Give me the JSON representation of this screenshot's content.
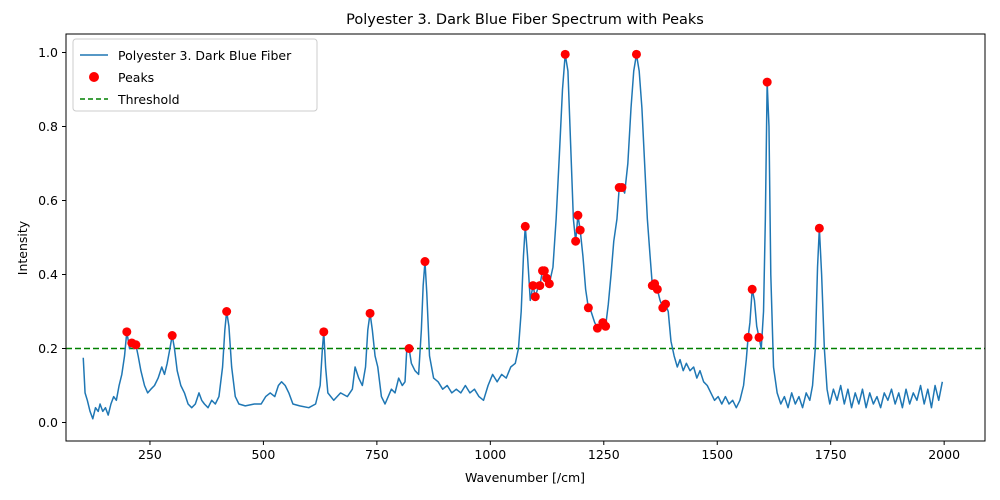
{
  "chart_data": {
    "type": "line",
    "title": "Polyester 3. Dark Blue Fiber Spectrum with Peaks",
    "xlabel": "Wavenumber [/cm]",
    "ylabel": "Intensity",
    "xlim": [
      65,
      2090
    ],
    "ylim": [
      -0.05,
      1.05
    ],
    "xticks": [
      250,
      500,
      750,
      1000,
      1250,
      1500,
      1750,
      2000
    ],
    "yticks": [
      0.0,
      0.2,
      0.4,
      0.6,
      0.8,
      1.0
    ],
    "xtick_labels": [
      "250",
      "500",
      "750",
      "1000",
      "1250",
      "1500",
      "1750",
      "2000"
    ],
    "ytick_labels": [
      "0.0",
      "0.2",
      "0.4",
      "0.6",
      "0.8",
      "1.0"
    ],
    "legend_position": "upper-left",
    "threshold": 0.2,
    "series": [
      {
        "name": "Polyester 3. Dark Blue Fiber",
        "kind": "line",
        "color": "#1f77b4",
        "points": [
          [
            103,
            0.175
          ],
          [
            107,
            0.08
          ],
          [
            112,
            0.06
          ],
          [
            118,
            0.03
          ],
          [
            124,
            0.01
          ],
          [
            130,
            0.04
          ],
          [
            136,
            0.03
          ],
          [
            140,
            0.05
          ],
          [
            146,
            0.03
          ],
          [
            152,
            0.04
          ],
          [
            158,
            0.02
          ],
          [
            164,
            0.05
          ],
          [
            170,
            0.07
          ],
          [
            176,
            0.06
          ],
          [
            182,
            0.1
          ],
          [
            188,
            0.13
          ],
          [
            194,
            0.18
          ],
          [
            199,
            0.245
          ],
          [
            205,
            0.2
          ],
          [
            210,
            0.215
          ],
          [
            214,
            0.2
          ],
          [
            219,
            0.21
          ],
          [
            224,
            0.18
          ],
          [
            230,
            0.14
          ],
          [
            238,
            0.1
          ],
          [
            245,
            0.08
          ],
          [
            252,
            0.09
          ],
          [
            260,
            0.1
          ],
          [
            268,
            0.12
          ],
          [
            276,
            0.15
          ],
          [
            282,
            0.13
          ],
          [
            288,
            0.16
          ],
          [
            294,
            0.2
          ],
          [
            299,
            0.235
          ],
          [
            304,
            0.2
          ],
          [
            310,
            0.14
          ],
          [
            318,
            0.1
          ],
          [
            326,
            0.08
          ],
          [
            334,
            0.05
          ],
          [
            342,
            0.04
          ],
          [
            350,
            0.05
          ],
          [
            358,
            0.08
          ],
          [
            364,
            0.06
          ],
          [
            370,
            0.05
          ],
          [
            378,
            0.04
          ],
          [
            386,
            0.06
          ],
          [
            394,
            0.05
          ],
          [
            402,
            0.07
          ],
          [
            410,
            0.15
          ],
          [
            415,
            0.25
          ],
          [
            419,
            0.3
          ],
          [
            424,
            0.26
          ],
          [
            430,
            0.15
          ],
          [
            438,
            0.07
          ],
          [
            446,
            0.05
          ],
          [
            460,
            0.045
          ],
          [
            480,
            0.05
          ],
          [
            495,
            0.05
          ],
          [
            505,
            0.07
          ],
          [
            515,
            0.08
          ],
          [
            525,
            0.07
          ],
          [
            533,
            0.1
          ],
          [
            540,
            0.11
          ],
          [
            548,
            0.1
          ],
          [
            556,
            0.08
          ],
          [
            565,
            0.05
          ],
          [
            580,
            0.045
          ],
          [
            600,
            0.04
          ],
          [
            615,
            0.05
          ],
          [
            625,
            0.1
          ],
          [
            630,
            0.2
          ],
          [
            633,
            0.245
          ],
          [
            637,
            0.15
          ],
          [
            642,
            0.08
          ],
          [
            655,
            0.06
          ],
          [
            670,
            0.08
          ],
          [
            685,
            0.07
          ],
          [
            696,
            0.09
          ],
          [
            702,
            0.15
          ],
          [
            710,
            0.12
          ],
          [
            718,
            0.1
          ],
          [
            725,
            0.15
          ],
          [
            730,
            0.25
          ],
          [
            735,
            0.295
          ],
          [
            740,
            0.25
          ],
          [
            746,
            0.18
          ],
          [
            752,
            0.15
          ],
          [
            760,
            0.07
          ],
          [
            768,
            0.05
          ],
          [
            775,
            0.07
          ],
          [
            782,
            0.09
          ],
          [
            790,
            0.08
          ],
          [
            798,
            0.12
          ],
          [
            806,
            0.1
          ],
          [
            812,
            0.11
          ],
          [
            816,
            0.2
          ],
          [
            821,
            0.2
          ],
          [
            826,
            0.16
          ],
          [
            834,
            0.14
          ],
          [
            842,
            0.13
          ],
          [
            848,
            0.25
          ],
          [
            852,
            0.37
          ],
          [
            856,
            0.435
          ],
          [
            860,
            0.35
          ],
          [
            866,
            0.18
          ],
          [
            875,
            0.12
          ],
          [
            885,
            0.11
          ],
          [
            895,
            0.09
          ],
          [
            905,
            0.1
          ],
          [
            915,
            0.08
          ],
          [
            925,
            0.09
          ],
          [
            935,
            0.08
          ],
          [
            945,
            0.1
          ],
          [
            955,
            0.08
          ],
          [
            965,
            0.09
          ],
          [
            975,
            0.07
          ],
          [
            985,
            0.06
          ],
          [
            995,
            0.1
          ],
          [
            1005,
            0.13
          ],
          [
            1015,
            0.11
          ],
          [
            1025,
            0.13
          ],
          [
            1035,
            0.12
          ],
          [
            1045,
            0.15
          ],
          [
            1055,
            0.16
          ],
          [
            1062,
            0.2
          ],
          [
            1068,
            0.3
          ],
          [
            1073,
            0.45
          ],
          [
            1077,
            0.53
          ],
          [
            1082,
            0.45
          ],
          [
            1088,
            0.33
          ],
          [
            1094,
            0.37
          ],
          [
            1099,
            0.34
          ],
          [
            1104,
            0.36
          ],
          [
            1109,
            0.37
          ],
          [
            1115,
            0.41
          ],
          [
            1119,
            0.41
          ],
          [
            1124,
            0.39
          ],
          [
            1130,
            0.375
          ],
          [
            1138,
            0.42
          ],
          [
            1145,
            0.55
          ],
          [
            1152,
            0.72
          ],
          [
            1159,
            0.9
          ],
          [
            1165,
            0.995
          ],
          [
            1171,
            0.95
          ],
          [
            1177,
            0.75
          ],
          [
            1183,
            0.55
          ],
          [
            1188,
            0.49
          ],
          [
            1193,
            0.56
          ],
          [
            1198,
            0.52
          ],
          [
            1204,
            0.45
          ],
          [
            1210,
            0.36
          ],
          [
            1216,
            0.31
          ],
          [
            1222,
            0.3
          ],
          [
            1230,
            0.27
          ],
          [
            1236,
            0.255
          ],
          [
            1242,
            0.26
          ],
          [
            1248,
            0.27
          ],
          [
            1254,
            0.26
          ],
          [
            1260,
            0.32
          ],
          [
            1266,
            0.4
          ],
          [
            1272,
            0.49
          ],
          [
            1279,
            0.55
          ],
          [
            1284,
            0.635
          ],
          [
            1290,
            0.635
          ],
          [
            1296,
            0.62
          ],
          [
            1303,
            0.7
          ],
          [
            1310,
            0.85
          ],
          [
            1316,
            0.95
          ],
          [
            1322,
            0.995
          ],
          [
            1328,
            0.95
          ],
          [
            1334,
            0.85
          ],
          [
            1340,
            0.7
          ],
          [
            1346,
            0.55
          ],
          [
            1352,
            0.45
          ],
          [
            1357,
            0.37
          ],
          [
            1362,
            0.375
          ],
          [
            1368,
            0.36
          ],
          [
            1374,
            0.33
          ],
          [
            1380,
            0.31
          ],
          [
            1386,
            0.32
          ],
          [
            1392,
            0.3
          ],
          [
            1398,
            0.22
          ],
          [
            1405,
            0.18
          ],
          [
            1412,
            0.15
          ],
          [
            1418,
            0.17
          ],
          [
            1425,
            0.14
          ],
          [
            1432,
            0.16
          ],
          [
            1440,
            0.14
          ],
          [
            1448,
            0.15
          ],
          [
            1455,
            0.12
          ],
          [
            1462,
            0.14
          ],
          [
            1470,
            0.11
          ],
          [
            1478,
            0.1
          ],
          [
            1486,
            0.08
          ],
          [
            1494,
            0.06
          ],
          [
            1502,
            0.07
          ],
          [
            1510,
            0.05
          ],
          [
            1518,
            0.07
          ],
          [
            1526,
            0.05
          ],
          [
            1534,
            0.06
          ],
          [
            1542,
            0.04
          ],
          [
            1550,
            0.06
          ],
          [
            1558,
            0.1
          ],
          [
            1564,
            0.17
          ],
          [
            1568,
            0.23
          ],
          [
            1572,
            0.27
          ],
          [
            1577,
            0.36
          ],
          [
            1582,
            0.33
          ],
          [
            1587,
            0.26
          ],
          [
            1592,
            0.23
          ],
          [
            1597,
            0.2
          ],
          [
            1602,
            0.3
          ],
          [
            1606,
            0.55
          ],
          [
            1610,
            0.92
          ],
          [
            1614,
            0.8
          ],
          [
            1618,
            0.4
          ],
          [
            1624,
            0.15
          ],
          [
            1632,
            0.08
          ],
          [
            1640,
            0.05
          ],
          [
            1648,
            0.07
          ],
          [
            1656,
            0.04
          ],
          [
            1664,
            0.08
          ],
          [
            1672,
            0.05
          ],
          [
            1680,
            0.07
          ],
          [
            1688,
            0.04
          ],
          [
            1696,
            0.08
          ],
          [
            1704,
            0.06
          ],
          [
            1710,
            0.1
          ],
          [
            1716,
            0.2
          ],
          [
            1721,
            0.42
          ],
          [
            1725,
            0.525
          ],
          [
            1730,
            0.4
          ],
          [
            1736,
            0.2
          ],
          [
            1742,
            0.09
          ],
          [
            1748,
            0.05
          ],
          [
            1756,
            0.09
          ],
          [
            1764,
            0.06
          ],
          [
            1772,
            0.1
          ],
          [
            1780,
            0.05
          ],
          [
            1788,
            0.09
          ],
          [
            1796,
            0.04
          ],
          [
            1804,
            0.08
          ],
          [
            1812,
            0.05
          ],
          [
            1820,
            0.09
          ],
          [
            1828,
            0.04
          ],
          [
            1836,
            0.08
          ],
          [
            1844,
            0.05
          ],
          [
            1852,
            0.07
          ],
          [
            1860,
            0.04
          ],
          [
            1868,
            0.08
          ],
          [
            1876,
            0.06
          ],
          [
            1884,
            0.09
          ],
          [
            1892,
            0.05
          ],
          [
            1900,
            0.08
          ],
          [
            1908,
            0.04
          ],
          [
            1916,
            0.09
          ],
          [
            1924,
            0.05
          ],
          [
            1932,
            0.08
          ],
          [
            1940,
            0.06
          ],
          [
            1948,
            0.1
          ],
          [
            1956,
            0.05
          ],
          [
            1964,
            0.09
          ],
          [
            1972,
            0.04
          ],
          [
            1980,
            0.1
          ],
          [
            1988,
            0.06
          ],
          [
            1996,
            0.11
          ]
        ]
      },
      {
        "name": "Peaks",
        "kind": "scatter",
        "color": "#ff0000",
        "points": [
          [
            199,
            0.245
          ],
          [
            210,
            0.215
          ],
          [
            219,
            0.21
          ],
          [
            299,
            0.235
          ],
          [
            419,
            0.3
          ],
          [
            633,
            0.245
          ],
          [
            735,
            0.295
          ],
          [
            821,
            0.2
          ],
          [
            856,
            0.435
          ],
          [
            1077,
            0.53
          ],
          [
            1094,
            0.37
          ],
          [
            1099,
            0.34
          ],
          [
            1109,
            0.37
          ],
          [
            1115,
            0.41
          ],
          [
            1119,
            0.41
          ],
          [
            1124,
            0.39
          ],
          [
            1130,
            0.375
          ],
          [
            1165,
            0.995
          ],
          [
            1188,
            0.49
          ],
          [
            1193,
            0.56
          ],
          [
            1198,
            0.52
          ],
          [
            1216,
            0.31
          ],
          [
            1236,
            0.255
          ],
          [
            1248,
            0.27
          ],
          [
            1254,
            0.26
          ],
          [
            1284,
            0.635
          ],
          [
            1290,
            0.635
          ],
          [
            1322,
            0.995
          ],
          [
            1357,
            0.37
          ],
          [
            1362,
            0.375
          ],
          [
            1368,
            0.36
          ],
          [
            1380,
            0.31
          ],
          [
            1386,
            0.32
          ],
          [
            1568,
            0.23
          ],
          [
            1577,
            0.36
          ],
          [
            1592,
            0.23
          ],
          [
            1610,
            0.92
          ],
          [
            1725,
            0.525
          ]
        ]
      },
      {
        "name": "Threshold",
        "kind": "hline",
        "color": "#008000",
        "value": 0.2
      }
    ]
  }
}
